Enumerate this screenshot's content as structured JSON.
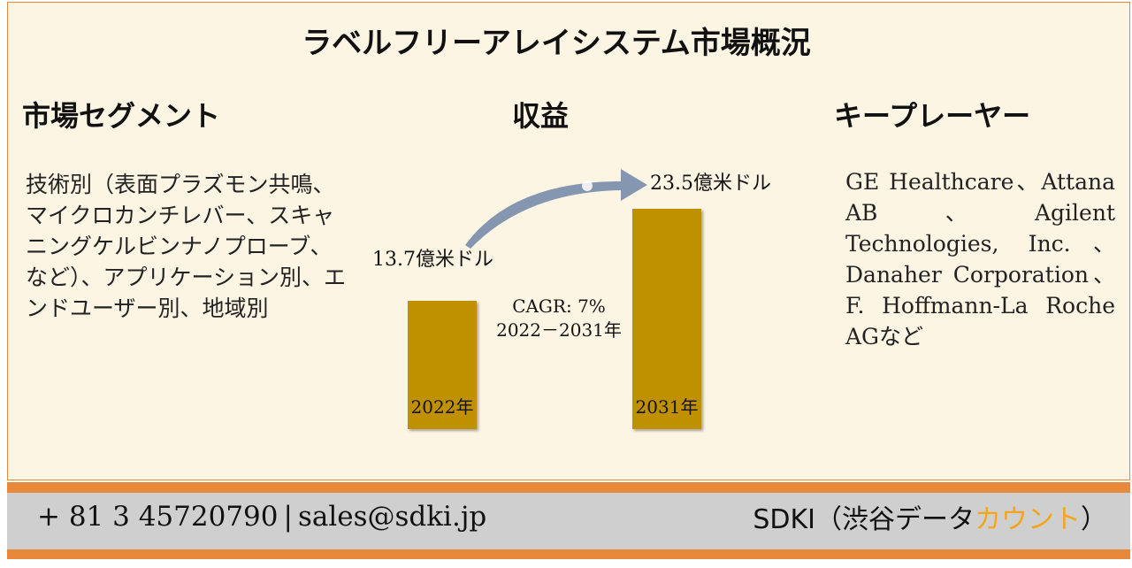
{
  "title": "ラベルフリーアレイシステム市場概況",
  "sections": {
    "segments": {
      "heading": "市場セグメント",
      "text": "技術別（表面プラズモン共鳴、マイクロカンチレバー、スキャニングケルビンナノプローブ、など）、アプリケーション別、エンドユーザー別、地域別"
    },
    "revenue": {
      "heading": "収益"
    },
    "key_players": {
      "heading": "キープレーヤー",
      "text": "GE Healthcare、Attana AB、Agilent Technologies, Inc.、Danaher Corporation、F. Hoffmann-La Roche AGなど"
    }
  },
  "chart_data": {
    "type": "bar",
    "categories": [
      "2022年",
      "2031年"
    ],
    "values": [
      13.7,
      23.5
    ],
    "value_labels": [
      "13.7億米ドル",
      "23.5億米ドル"
    ],
    "annotation": {
      "line1": "CAGR: 7%",
      "line2": "2022－2031年"
    },
    "colors": {
      "bar": "#bf9000",
      "arrow": "#8496b0"
    }
  },
  "footer": {
    "phone": "+ 81 3 45720790",
    "separator": "|",
    "email": "sales@sdki.jp",
    "brand_prefix": "SDKI（渋谷データ",
    "brand_accent": "カウント",
    "brand_suffix": "）"
  },
  "colors": {
    "border": "#e8883a",
    "panel_bg": "#fdf5e4",
    "footer_bg": "#cfcfcf",
    "accent": "#f3a51c"
  }
}
